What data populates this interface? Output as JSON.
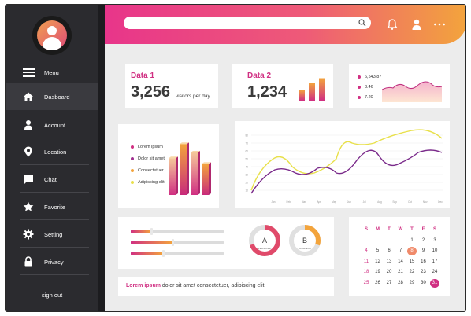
{
  "sidebar": {
    "menu_label": "Menu",
    "items": [
      {
        "label": "Dasboard",
        "icon": "home-icon"
      },
      {
        "label": "Account",
        "icon": "user-icon"
      },
      {
        "label": "Location",
        "icon": "location-pin-icon"
      },
      {
        "label": "Chat",
        "icon": "chat-icon"
      },
      {
        "label": "Favorite",
        "icon": "star-icon"
      },
      {
        "label": "Setting",
        "icon": "gear-icon"
      },
      {
        "label": "Privacy",
        "icon": "lock-icon"
      }
    ],
    "signout_label": "sign out"
  },
  "header": {
    "search_placeholder": "",
    "icons": [
      "bell-icon",
      "user-icon",
      "more-icon"
    ]
  },
  "stat1": {
    "title": "Data 1",
    "value": "3,256",
    "caption": "visitors per day"
  },
  "stat2": {
    "title": "Data 2",
    "value": "1,234",
    "bars": [
      0.45,
      0.75,
      0.95
    ]
  },
  "sparkline": {
    "labels": [
      "6,543.87",
      "3.46",
      "7.20"
    ]
  },
  "bar3d": {
    "legend": [
      "Lorem ipsum",
      "Dolor sit amet",
      "Consectetuer",
      "Adipiscing elit"
    ],
    "values": [
      0.65,
      0.9,
      0.75,
      0.55
    ]
  },
  "line_chart": {
    "months": [
      "Jan",
      "Feb",
      "Mar",
      "Apr",
      "May",
      "Jun",
      "Jul",
      "Aug",
      "Sep",
      "Oct",
      "Nov",
      "Dec"
    ],
    "yticks": [
      "80",
      "70",
      "60",
      "50",
      "40",
      "30",
      "20",
      "10"
    ]
  },
  "sliders": [
    0.22,
    0.45,
    0.35
  ],
  "donuts": [
    {
      "letter": "A",
      "caption": "PERSONAL",
      "fraction": 0.7,
      "color": "#e04a6a"
    },
    {
      "letter": "B",
      "caption": "BUSINESS",
      "fraction": 0.3,
      "color": "#f3a43c"
    }
  ],
  "lorem": {
    "highlight": "Lorem ipsum",
    "rest": " dolor sit amet consectetuer, adipiscing elit"
  },
  "calendar": {
    "headers": [
      "S",
      "M",
      "T",
      "W",
      "T",
      "F",
      "S"
    ],
    "rows": [
      [
        "",
        "",
        "",
        "",
        "1",
        "2",
        "3"
      ],
      [
        "4",
        "5",
        "6",
        "7",
        "8",
        "9",
        "10"
      ],
      [
        "11",
        "12",
        "13",
        "14",
        "15",
        "16",
        "17"
      ],
      [
        "18",
        "19",
        "20",
        "21",
        "22",
        "23",
        "24"
      ],
      [
        "25",
        "26",
        "27",
        "28",
        "29",
        "30",
        "31"
      ]
    ],
    "highlight_orange": "8",
    "highlight_pink": "31"
  },
  "colors": {
    "pink": "#d02f82",
    "orange": "#f3a43c",
    "purple": "#7a2a8a",
    "yellow": "#e8e04a"
  }
}
